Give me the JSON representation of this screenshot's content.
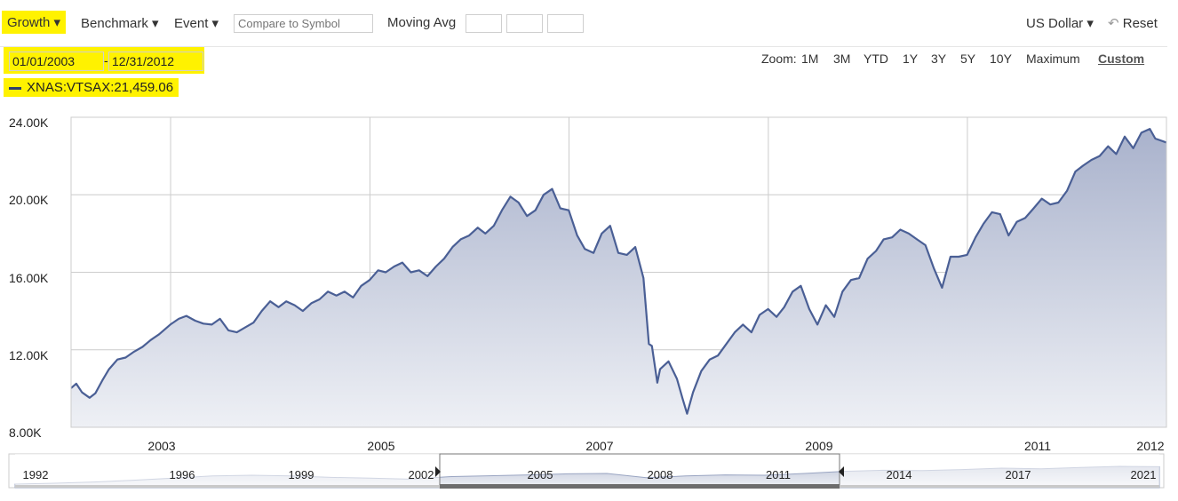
{
  "toolbar": {
    "growth_label": "Growth",
    "benchmark_label": "Benchmark",
    "event_label": "Event",
    "compare_placeholder": "Compare to Symbol",
    "moving_avg_label": "Moving Avg",
    "currency_label": "US Dollar",
    "reset_label": "Reset",
    "dropdown_arrow": "▾",
    "reset_icon": "↶"
  },
  "date_range": {
    "start": "01/01/2003",
    "separator": "-",
    "end": "12/31/2012"
  },
  "zoom": {
    "label": "Zoom:",
    "options": [
      "1M",
      "3M",
      "YTD",
      "1Y",
      "3Y",
      "5Y",
      "10Y",
      "Maximum",
      "Custom"
    ],
    "active": "Custom"
  },
  "legend": {
    "text": "XNAS:VTSAX:21,459.06"
  },
  "colors": {
    "line": "#4a5f95",
    "fill_top": "#a9b2cc",
    "fill_bottom": "#eef0f5",
    "grid": "#cccccc",
    "highlight": "#fff200"
  },
  "chart_data": {
    "type": "area",
    "series": [
      {
        "name": "XNAS:VTSAX",
        "points": [
          [
            "2003-01-01",
            10020
          ],
          [
            "2003-01-20",
            10250
          ],
          [
            "2003-02-10",
            9800
          ],
          [
            "2003-03-10",
            9520
          ],
          [
            "2003-03-31",
            9750
          ],
          [
            "2003-04-25",
            10400
          ],
          [
            "2003-05-20",
            11000
          ],
          [
            "2003-06-20",
            11500
          ],
          [
            "2003-07-20",
            11600
          ],
          [
            "2003-08-20",
            11900
          ],
          [
            "2003-09-20",
            12150
          ],
          [
            "2003-10-20",
            12500
          ],
          [
            "2003-11-20",
            12800
          ],
          [
            "2003-12-31",
            13300
          ],
          [
            "2004-01-31",
            13600
          ],
          [
            "2004-02-28",
            13750
          ],
          [
            "2004-03-31",
            13500
          ],
          [
            "2004-04-30",
            13350
          ],
          [
            "2004-05-31",
            13300
          ],
          [
            "2004-06-30",
            13600
          ],
          [
            "2004-07-31",
            13000
          ],
          [
            "2004-08-31",
            12900
          ],
          [
            "2004-09-30",
            13150
          ],
          [
            "2004-10-31",
            13400
          ],
          [
            "2004-11-30",
            14000
          ],
          [
            "2004-12-31",
            14500
          ],
          [
            "2005-01-31",
            14200
          ],
          [
            "2005-02-28",
            14500
          ],
          [
            "2005-03-31",
            14300
          ],
          [
            "2005-04-30",
            14000
          ],
          [
            "2005-05-31",
            14400
          ],
          [
            "2005-06-30",
            14600
          ],
          [
            "2005-07-31",
            15000
          ],
          [
            "2005-08-31",
            14800
          ],
          [
            "2005-09-30",
            15000
          ],
          [
            "2005-10-31",
            14700
          ],
          [
            "2005-11-30",
            15300
          ],
          [
            "2005-12-31",
            15600
          ],
          [
            "2006-01-31",
            16100
          ],
          [
            "2006-02-28",
            16000
          ],
          [
            "2006-03-31",
            16300
          ],
          [
            "2006-04-30",
            16500
          ],
          [
            "2006-05-31",
            16000
          ],
          [
            "2006-06-30",
            16100
          ],
          [
            "2006-07-31",
            15800
          ],
          [
            "2006-08-31",
            16300
          ],
          [
            "2006-09-30",
            16700
          ],
          [
            "2006-10-31",
            17300
          ],
          [
            "2006-11-30",
            17700
          ],
          [
            "2006-12-31",
            17900
          ],
          [
            "2007-01-31",
            18300
          ],
          [
            "2007-02-28",
            18000
          ],
          [
            "2007-03-31",
            18400
          ],
          [
            "2007-04-30",
            19200
          ],
          [
            "2007-05-31",
            19900
          ],
          [
            "2007-06-30",
            19600
          ],
          [
            "2007-07-31",
            18900
          ],
          [
            "2007-08-31",
            19200
          ],
          [
            "2007-09-30",
            20000
          ],
          [
            "2007-10-31",
            20300
          ],
          [
            "2007-11-30",
            19300
          ],
          [
            "2007-12-31",
            19200
          ],
          [
            "2008-01-31",
            17900
          ],
          [
            "2008-02-28",
            17200
          ],
          [
            "2008-03-31",
            17000
          ],
          [
            "2008-04-30",
            18000
          ],
          [
            "2008-05-31",
            18400
          ],
          [
            "2008-06-30",
            17000
          ],
          [
            "2008-07-31",
            16900
          ],
          [
            "2008-08-31",
            17300
          ],
          [
            "2008-09-30",
            15700
          ],
          [
            "2008-10-20",
            12300
          ],
          [
            "2008-10-31",
            12200
          ],
          [
            "2008-11-20",
            10300
          ],
          [
            "2008-11-30",
            11000
          ],
          [
            "2008-12-31",
            11400
          ],
          [
            "2009-01-31",
            10500
          ],
          [
            "2009-02-20",
            9500
          ],
          [
            "2009-03-09",
            8700
          ],
          [
            "2009-03-31",
            9800
          ],
          [
            "2009-04-30",
            10900
          ],
          [
            "2009-05-31",
            11500
          ],
          [
            "2009-06-30",
            11700
          ],
          [
            "2009-07-31",
            12300
          ],
          [
            "2009-08-31",
            12900
          ],
          [
            "2009-09-30",
            13300
          ],
          [
            "2009-10-31",
            12900
          ],
          [
            "2009-11-30",
            13800
          ],
          [
            "2009-12-31",
            14100
          ],
          [
            "2010-01-31",
            13700
          ],
          [
            "2010-02-28",
            14200
          ],
          [
            "2010-03-31",
            15000
          ],
          [
            "2010-04-30",
            15300
          ],
          [
            "2010-05-31",
            14100
          ],
          [
            "2010-06-30",
            13300
          ],
          [
            "2010-07-31",
            14300
          ],
          [
            "2010-08-31",
            13700
          ],
          [
            "2010-09-30",
            15000
          ],
          [
            "2010-10-31",
            15600
          ],
          [
            "2010-11-30",
            15700
          ],
          [
            "2010-12-31",
            16700
          ],
          [
            "2011-01-31",
            17100
          ],
          [
            "2011-02-28",
            17700
          ],
          [
            "2011-03-31",
            17800
          ],
          [
            "2011-04-30",
            18200
          ],
          [
            "2011-05-31",
            18000
          ],
          [
            "2011-06-30",
            17700
          ],
          [
            "2011-07-31",
            17400
          ],
          [
            "2011-08-31",
            16200
          ],
          [
            "2011-09-30",
            15200
          ],
          [
            "2011-10-31",
            16800
          ],
          [
            "2011-11-30",
            16800
          ],
          [
            "2011-12-31",
            16900
          ],
          [
            "2012-01-31",
            17800
          ],
          [
            "2012-02-29",
            18500
          ],
          [
            "2012-03-31",
            19100
          ],
          [
            "2012-04-30",
            19000
          ],
          [
            "2012-05-31",
            17900
          ],
          [
            "2012-06-30",
            18600
          ],
          [
            "2012-07-31",
            18800
          ],
          [
            "2012-08-31",
            19300
          ],
          [
            "2012-09-30",
            19800
          ],
          [
            "2012-10-31",
            19500
          ],
          [
            "2012-11-30",
            19600
          ],
          [
            "2012-12-31",
            20200
          ],
          [
            "2013-01-31",
            21200
          ],
          [
            "2013-02-28",
            21500
          ],
          [
            "2013-03-31",
            21800
          ],
          [
            "2013-04-30",
            22000
          ],
          [
            "2013-05-31",
            22500
          ],
          [
            "2013-06-30",
            22100
          ],
          [
            "2013-07-31",
            23000
          ],
          [
            "2013-08-31",
            22400
          ],
          [
            "2013-09-30",
            23200
          ],
          [
            "2013-10-31",
            23400
          ],
          [
            "2013-11-20",
            22900
          ],
          [
            "2013-12-31",
            22700
          ]
        ]
      }
    ],
    "yticks": [
      "24.00K",
      "20.00K",
      "16.00K",
      "12.00K",
      "8.00K"
    ],
    "xticks": [
      "2003",
      "2005",
      "2007",
      "2009",
      "2011",
      "2012"
    ],
    "ylim": [
      8000,
      24000
    ],
    "grid": true,
    "navigator": {
      "labels": [
        "1992",
        "1996",
        "1999",
        "2002",
        "2005",
        "2008",
        "2011",
        "2014",
        "2017",
        "2021"
      ]
    }
  }
}
